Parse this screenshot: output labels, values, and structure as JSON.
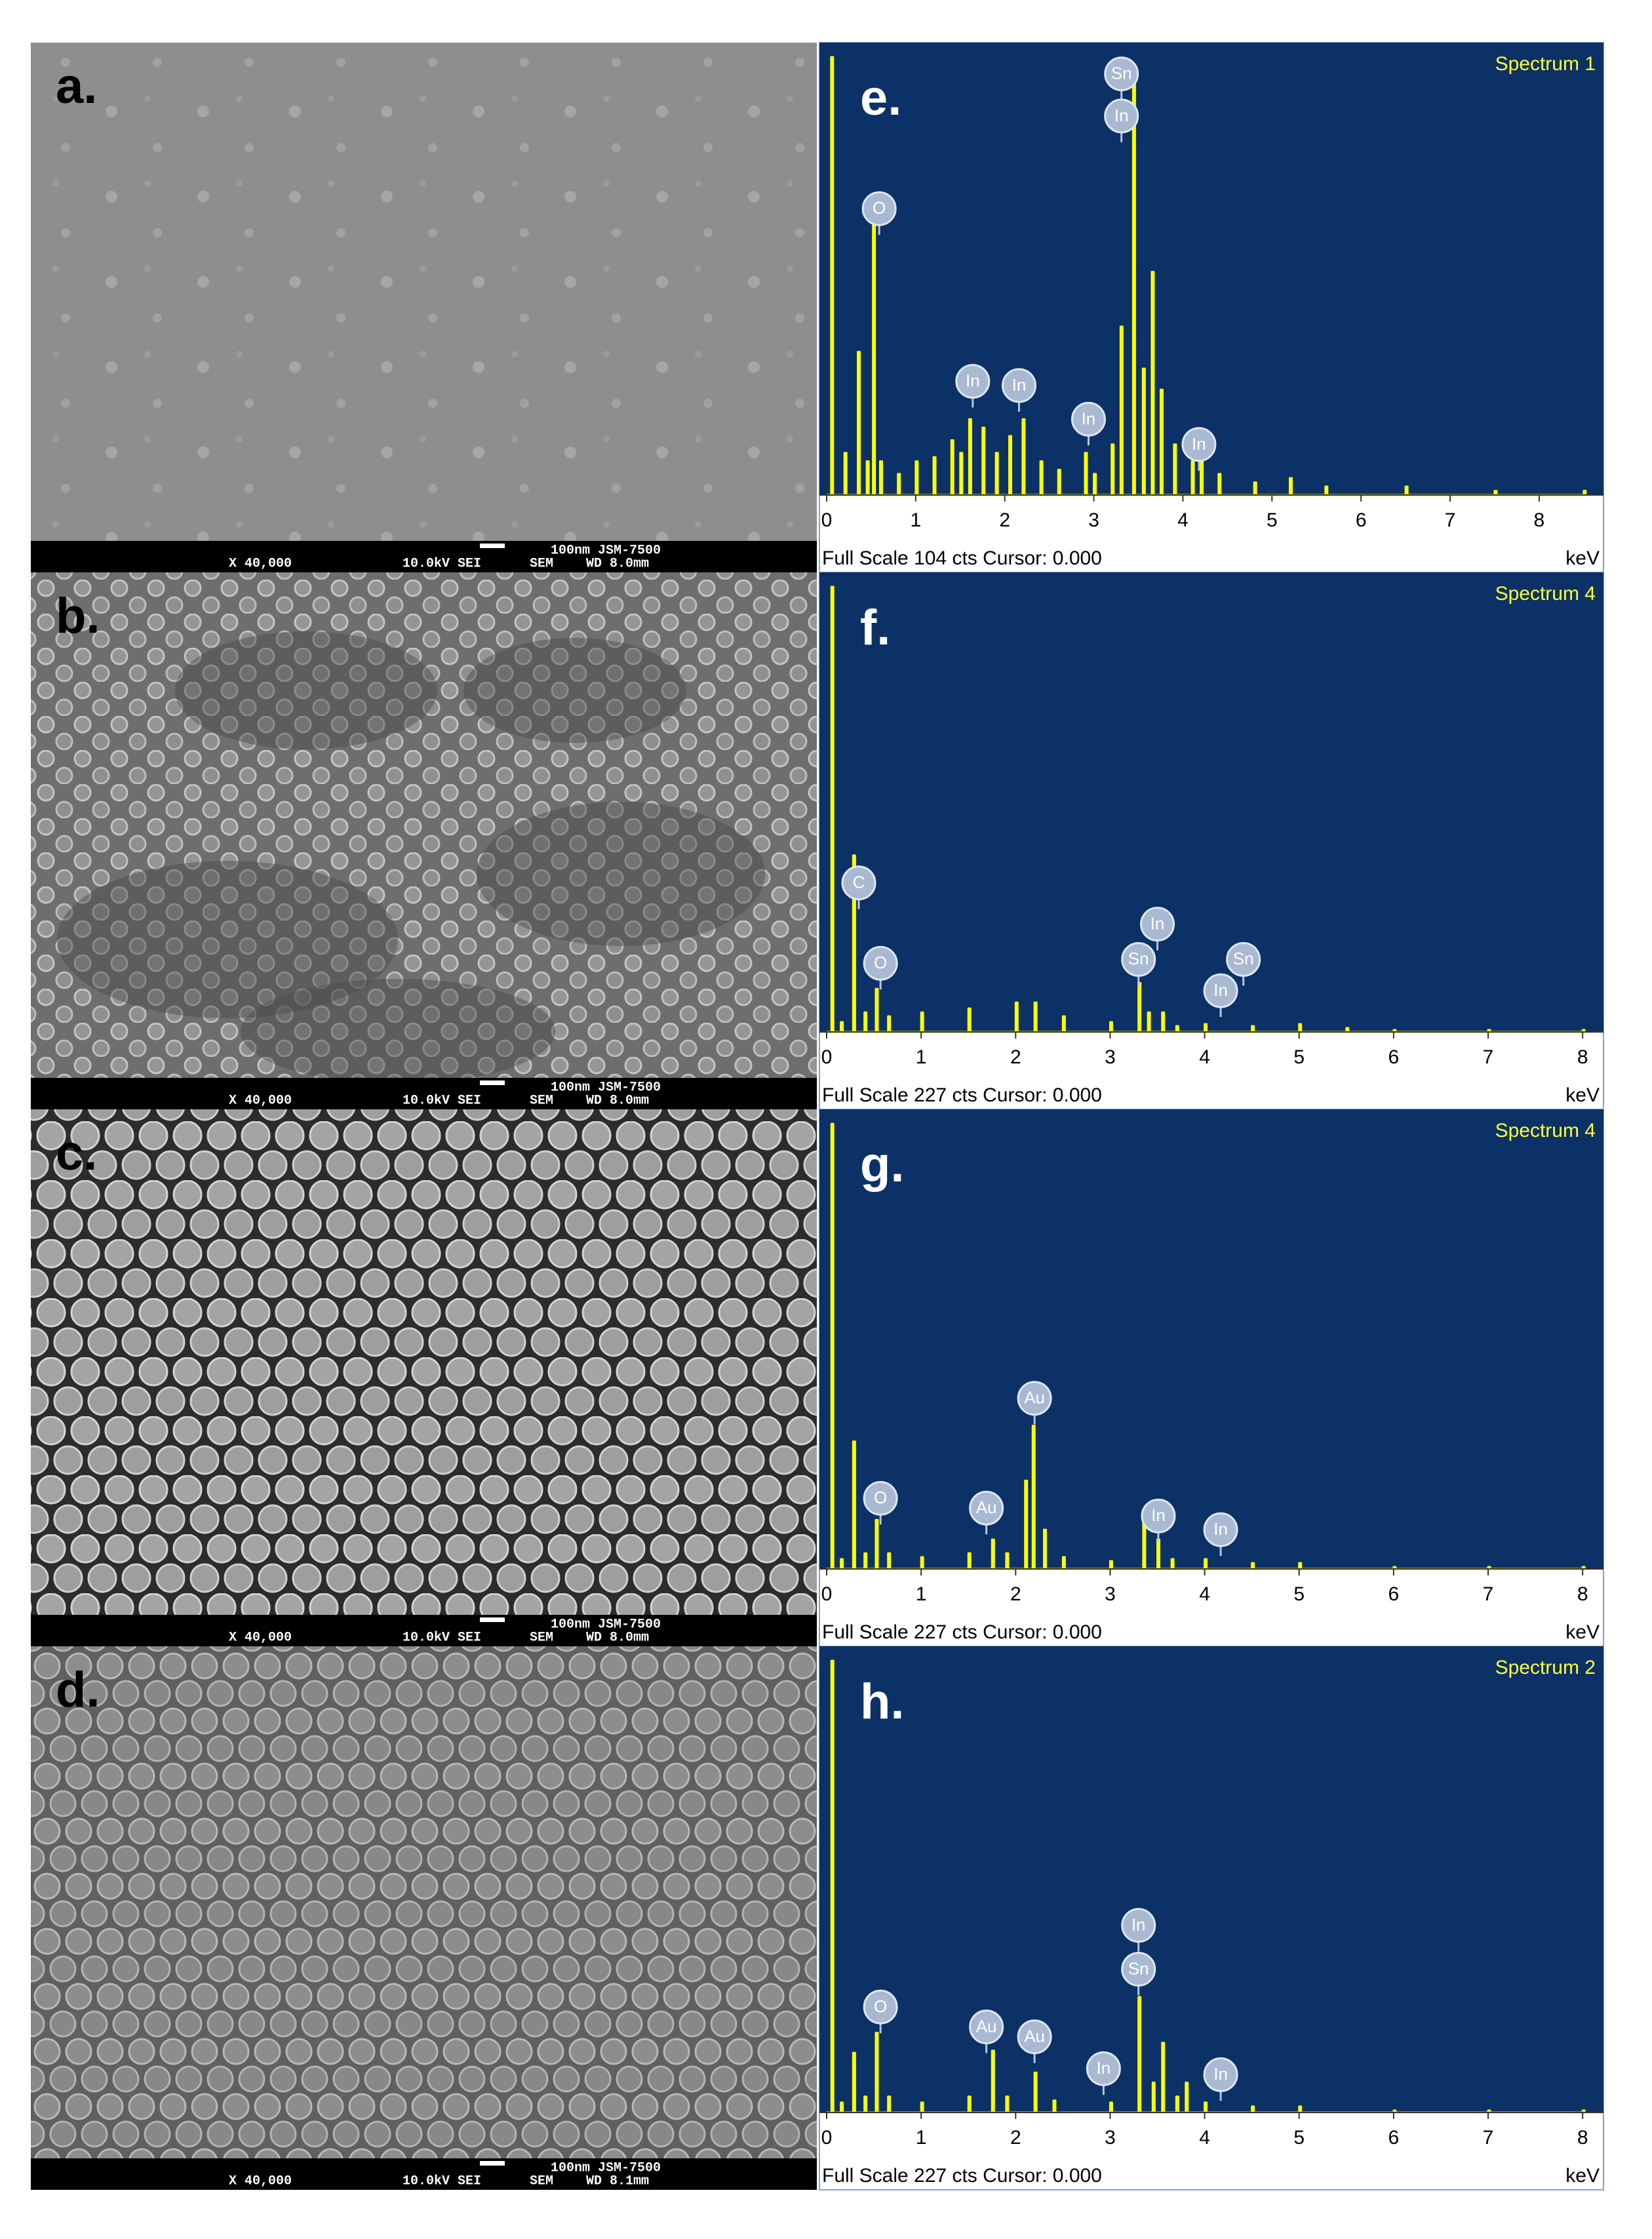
{
  "sem_panels": [
    {
      "label": "a.",
      "magnification": "X 40,000",
      "voltage": "10.0kV SEI",
      "mode": "SEM",
      "scale": "100nm JSM-7500",
      "wd": "WD 8.0mm"
    },
    {
      "label": "b.",
      "magnification": "X 40,000",
      "voltage": "10.0kV SEI",
      "mode": "SEM",
      "scale": "100nm JSM-7500",
      "wd": "WD 8.0mm"
    },
    {
      "label": "c.",
      "magnification": "X 40,000",
      "voltage": "10.0kV SEI",
      "mode": "SEM",
      "scale": "100nm JSM-7500",
      "wd": "WD 8.0mm"
    },
    {
      "label": "d.",
      "magnification": "X 40,000",
      "voltage": "10.0kV SEI",
      "mode": "SEM",
      "scale": "100nm JSM-7500",
      "wd": "WD 8.1mm"
    }
  ],
  "chart_data": [
    {
      "type": "line",
      "panel_label": "e.",
      "title": "Spectrum 1",
      "footer": "Full Scale 104 cts Cursor: 0.000",
      "xlabel": "keV",
      "color": "#ffff00",
      "xlim": [
        0,
        8.7
      ],
      "xticks": [
        0,
        1,
        2,
        3,
        4,
        5,
        6,
        7,
        8
      ],
      "ylim": [
        0,
        104
      ],
      "x": [
        0,
        0.05,
        0.2,
        0.35,
        0.45,
        0.52,
        0.6,
        0.8,
        1.0,
        1.2,
        1.4,
        1.5,
        1.6,
        1.75,
        1.9,
        2.05,
        2.2,
        2.4,
        2.6,
        2.9,
        3.0,
        3.2,
        3.3,
        3.44,
        3.55,
        3.65,
        3.75,
        3.9,
        4.1,
        4.2,
        4.4,
        4.8,
        5.2,
        5.6,
        6.5,
        7.5,
        8.5
      ],
      "values": [
        0,
        104,
        10,
        34,
        8,
        64,
        8,
        5,
        8,
        9,
        13,
        10,
        18,
        16,
        10,
        14,
        18,
        8,
        6,
        10,
        5,
        12,
        40,
        100,
        30,
        53,
        25,
        12,
        8,
        10,
        5,
        3,
        4,
        2,
        2,
        1,
        1
      ],
      "annotations": [
        {
          "text": "O",
          "x": 0.59,
          "y": 68
        },
        {
          "text": "In",
          "x": 1.64,
          "y": 27
        },
        {
          "text": "In",
          "x": 2.16,
          "y": 26
        },
        {
          "text": "In",
          "x": 2.94,
          "y": 18
        },
        {
          "text": "Sn",
          "x": 3.31,
          "y": 100
        },
        {
          "text": "In",
          "x": 3.31,
          "y": 90
        },
        {
          "text": "In",
          "x": 4.18,
          "y": 12
        }
      ]
    },
    {
      "type": "line",
      "panel_label": "f.",
      "title": "Spectrum 4",
      "footer": "Full Scale 227 cts Cursor: 0.000",
      "xlabel": "keV",
      "color": "#ffff00",
      "xlim": [
        0,
        8.2
      ],
      "xticks": [
        0,
        1,
        2,
        3,
        4,
        5,
        6,
        7,
        8
      ],
      "ylim": [
        0,
        227
      ],
      "x": [
        0,
        0.05,
        0.15,
        0.28,
        0.4,
        0.52,
        0.65,
        1,
        1.5,
        2,
        2.2,
        2.5,
        3,
        3.3,
        3.4,
        3.55,
        3.7,
        4,
        4.5,
        5,
        5.5,
        6,
        7,
        8
      ],
      "values": [
        0,
        227,
        5,
        90,
        10,
        22,
        8,
        10,
        12,
        15,
        15,
        8,
        5,
        25,
        10,
        10,
        3,
        4,
        3,
        4,
        2,
        1,
        1,
        1
      ],
      "annotations": [
        {
          "text": "C",
          "x": 0.34,
          "y": 76
        },
        {
          "text": "O",
          "x": 0.57,
          "y": 35
        },
        {
          "text": "Sn",
          "x": 3.3,
          "y": 37
        },
        {
          "text": "In",
          "x": 3.5,
          "y": 55
        },
        {
          "text": "In",
          "x": 4.17,
          "y": 21
        },
        {
          "text": "Sn",
          "x": 4.41,
          "y": 37
        }
      ]
    },
    {
      "type": "line",
      "panel_label": "g.",
      "title": "Spectrum 4",
      "footer": "Full Scale 227 cts Cursor: 0.000",
      "xlabel": "keV",
      "color": "#ffff00",
      "xlim": [
        0,
        8.2
      ],
      "xticks": [
        0,
        1,
        2,
        3,
        4,
        5,
        6,
        7,
        8
      ],
      "ylim": [
        0,
        227
      ],
      "x": [
        0,
        0.05,
        0.15,
        0.28,
        0.4,
        0.52,
        0.65,
        1,
        1.5,
        1.75,
        1.9,
        2.1,
        2.18,
        2.3,
        2.5,
        3,
        3.35,
        3.5,
        3.65,
        4,
        4.5,
        5,
        6,
        7,
        8
      ],
      "values": [
        0,
        227,
        5,
        65,
        8,
        25,
        8,
        6,
        8,
        15,
        8,
        45,
        73,
        20,
        6,
        4,
        25,
        15,
        5,
        5,
        3,
        3,
        1,
        1,
        1
      ],
      "annotations": [
        {
          "text": "O",
          "x": 0.57,
          "y": 36
        },
        {
          "text": "Au",
          "x": 1.69,
          "y": 31
        },
        {
          "text": "Au",
          "x": 2.2,
          "y": 87
        },
        {
          "text": "In",
          "x": 3.51,
          "y": 27
        },
        {
          "text": "In",
          "x": 4.17,
          "y": 20
        }
      ]
    },
    {
      "type": "line",
      "panel_label": "h.",
      "title": "Spectrum 2",
      "footer": "Full Scale 227 cts Cursor: 0.000",
      "xlabel": "keV",
      "color": "#ffff00",
      "xlim": [
        0,
        8.2
      ],
      "xticks": [
        0,
        1,
        2,
        3,
        4,
        5,
        6,
        7,
        8
      ],
      "ylim": [
        0,
        227
      ],
      "x": [
        0,
        0.05,
        0.15,
        0.28,
        0.4,
        0.52,
        0.65,
        1,
        1.5,
        1.75,
        1.9,
        2.2,
        2.4,
        3,
        3.3,
        3.45,
        3.55,
        3.7,
        3.8,
        4,
        4.5,
        5,
        6,
        7,
        8
      ],
      "values": [
        0,
        227,
        5,
        30,
        8,
        40,
        8,
        5,
        8,
        31,
        8,
        20,
        6,
        5,
        58,
        15,
        35,
        8,
        15,
        5,
        3,
        3,
        1,
        1,
        1
      ],
      "annotations": [
        {
          "text": "O",
          "x": 0.57,
          "y": 53
        },
        {
          "text": "Au",
          "x": 1.69,
          "y": 43
        },
        {
          "text": "Au",
          "x": 2.2,
          "y": 38
        },
        {
          "text": "In",
          "x": 2.93,
          "y": 22
        },
        {
          "text": "In",
          "x": 3.3,
          "y": 94
        },
        {
          "text": "Sn",
          "x": 3.3,
          "y": 72
        },
        {
          "text": "In",
          "x": 4.17,
          "y": 19
        }
      ]
    }
  ]
}
